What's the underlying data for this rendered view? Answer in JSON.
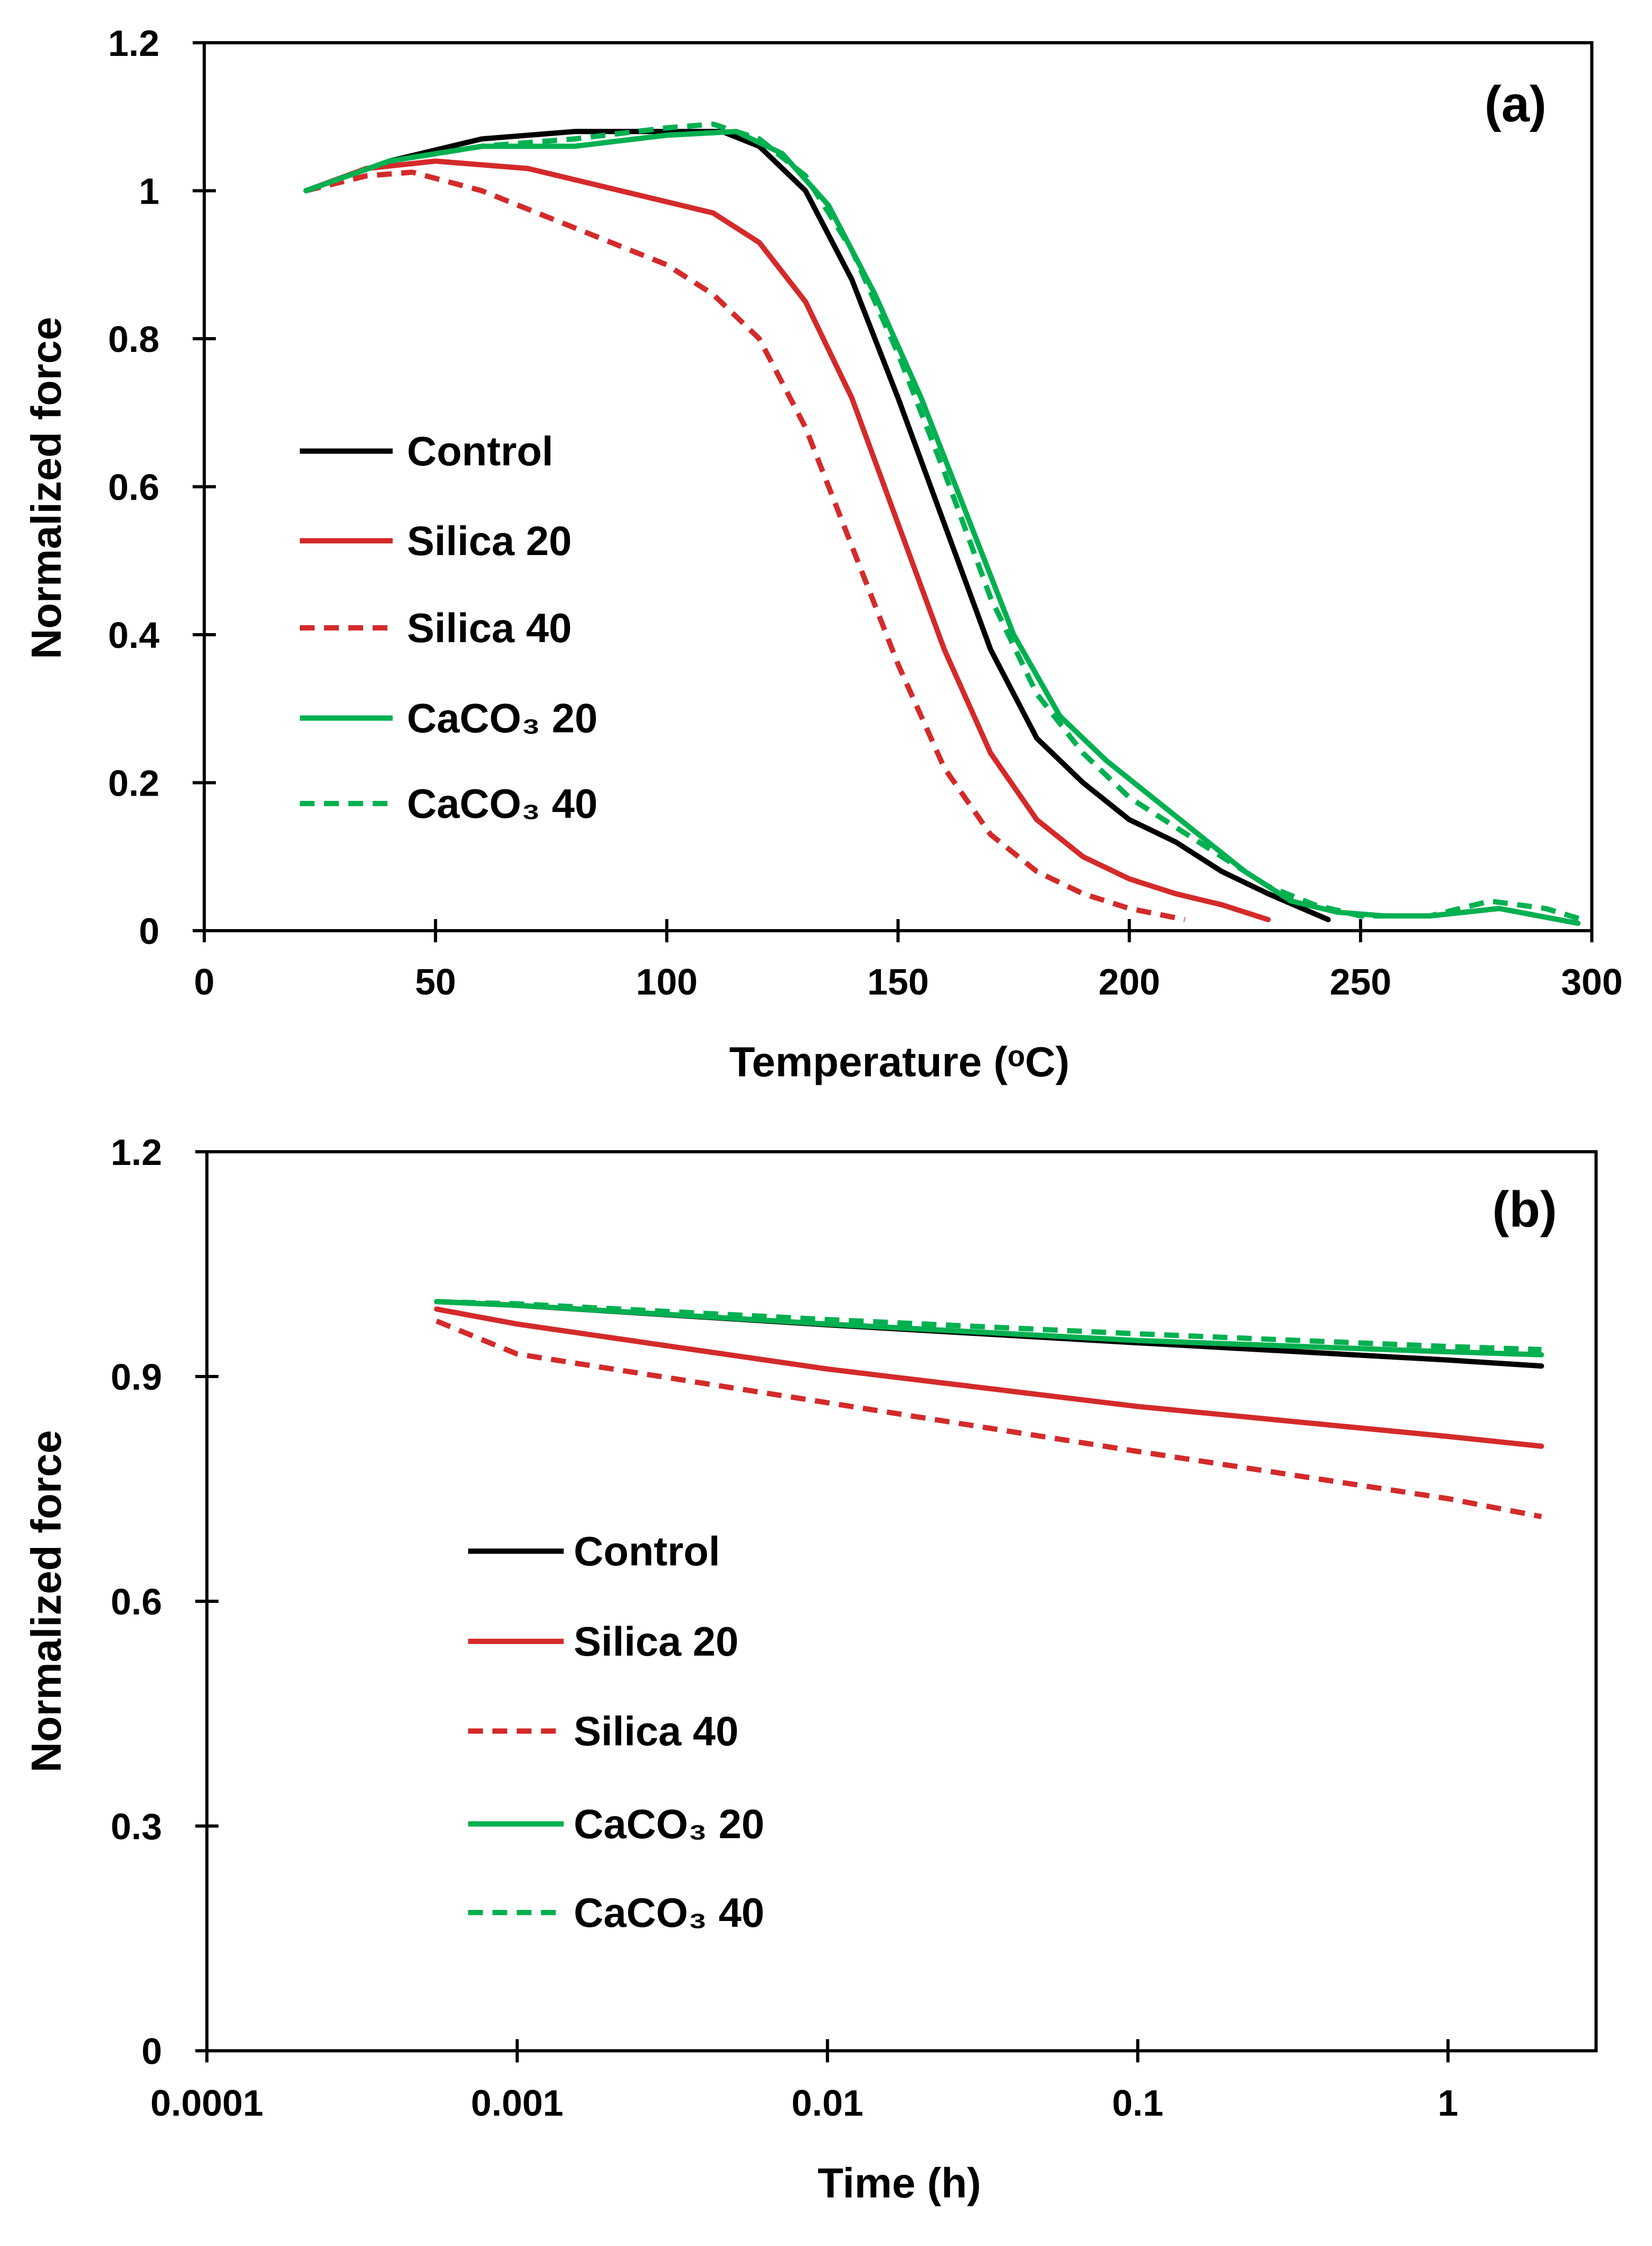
{
  "colors": {
    "control": "#000000",
    "silica": "#d42a2a",
    "caco3": "#00b050"
  },
  "chart_data": [
    {
      "type": "line",
      "panel_label": "(a)",
      "xlabel": "Temperature (ᵒC)",
      "ylabel": "Normalized force",
      "xlim": [
        0,
        300
      ],
      "ylim": [
        0,
        1.2
      ],
      "xscale": "linear",
      "xticks": [
        0,
        50,
        100,
        150,
        200,
        250,
        300
      ],
      "xtick_labels": [
        "0",
        "50",
        "100",
        "150",
        "200",
        "250",
        "300"
      ],
      "yticks": [
        0,
        0.2,
        0.4,
        0.6,
        0.8,
        1,
        1.2
      ],
      "ytick_labels": [
        "0",
        "0.2",
        "0.4",
        "0.6",
        "0.8",
        "1",
        "1.2"
      ],
      "legend_position": "center-left",
      "grid": false,
      "series": [
        {
          "name": "Control",
          "color": "control",
          "dashed": false,
          "x": [
            22,
            40,
            60,
            80,
            100,
            112,
            120,
            130,
            140,
            150,
            160,
            170,
            180,
            190,
            200,
            210,
            220,
            230,
            243
          ],
          "y": [
            1.0,
            1.04,
            1.07,
            1.08,
            1.08,
            1.08,
            1.06,
            1.0,
            0.88,
            0.72,
            0.55,
            0.38,
            0.26,
            0.2,
            0.15,
            0.12,
            0.08,
            0.05,
            0.015
          ]
        },
        {
          "name": "Silica 20",
          "color": "silica",
          "dashed": false,
          "x": [
            22,
            35,
            50,
            70,
            90,
            110,
            120,
            130,
            140,
            150,
            160,
            170,
            180,
            190,
            200,
            210,
            220,
            230
          ],
          "y": [
            1.0,
            1.03,
            1.04,
            1.03,
            1.0,
            0.97,
            0.93,
            0.85,
            0.72,
            0.55,
            0.38,
            0.24,
            0.15,
            0.1,
            0.07,
            0.05,
            0.035,
            0.015
          ]
        },
        {
          "name": "Silica 40",
          "color": "silica",
          "dashed": true,
          "x": [
            22,
            35,
            45,
            60,
            80,
            100,
            110,
            120,
            130,
            140,
            150,
            160,
            170,
            180,
            190,
            200,
            212
          ],
          "y": [
            1.0,
            1.02,
            1.025,
            1.0,
            0.95,
            0.9,
            0.86,
            0.8,
            0.68,
            0.52,
            0.36,
            0.22,
            0.13,
            0.08,
            0.05,
            0.03,
            0.015
          ]
        },
        {
          "name": "CaCO₃ 20",
          "color": "caco3",
          "dashed": false,
          "x": [
            22,
            40,
            60,
            80,
            100,
            115,
            125,
            135,
            145,
            155,
            165,
            175,
            185,
            195,
            205,
            215,
            225,
            235,
            245,
            255,
            265,
            280,
            297
          ],
          "y": [
            1.0,
            1.04,
            1.06,
            1.06,
            1.075,
            1.08,
            1.05,
            0.98,
            0.86,
            0.72,
            0.56,
            0.4,
            0.29,
            0.23,
            0.18,
            0.13,
            0.08,
            0.04,
            0.025,
            0.02,
            0.02,
            0.03,
            0.01
          ]
        },
        {
          "name": "CaCO₃ 40",
          "color": "caco3",
          "dashed": true,
          "x": [
            22,
            40,
            60,
            80,
            100,
            110,
            120,
            130,
            140,
            150,
            160,
            170,
            180,
            190,
            200,
            210,
            220,
            230,
            240,
            250,
            265,
            278,
            290,
            298
          ],
          "y": [
            1.0,
            1.04,
            1.06,
            1.07,
            1.085,
            1.09,
            1.07,
            1.02,
            0.92,
            0.78,
            0.62,
            0.45,
            0.32,
            0.24,
            0.18,
            0.14,
            0.1,
            0.06,
            0.035,
            0.02,
            0.02,
            0.04,
            0.03,
            0.015
          ]
        }
      ]
    },
    {
      "type": "line",
      "panel_label": "(b)",
      "xlabel": "Time (h)",
      "ylabel": "Normalized force",
      "xlim": [
        0.0001,
        3
      ],
      "ylim": [
        0,
        1.2
      ],
      "xscale": "log",
      "xticks": [
        0.0001,
        0.001,
        0.01,
        0.1,
        1
      ],
      "xtick_labels": [
        "0.0001",
        "0.001",
        "0.01",
        "0.1",
        "1"
      ],
      "yticks": [
        0,
        0.3,
        0.6,
        0.9,
        1.2
      ],
      "ytick_labels": [
        "0",
        "0.3",
        "0.6",
        "0.9",
        "1.2"
      ],
      "legend_position": "center-left",
      "grid": false,
      "series": [
        {
          "name": "Control",
          "color": "control",
          "dashed": false,
          "x": [
            0.00055,
            0.001,
            0.01,
            0.1,
            1,
            2
          ],
          "y": [
            1.0,
            0.995,
            0.969,
            0.945,
            0.922,
            0.914
          ]
        },
        {
          "name": "Silica 20",
          "color": "silica",
          "dashed": false,
          "x": [
            0.00055,
            0.001,
            0.01,
            0.1,
            1,
            2
          ],
          "y": [
            0.99,
            0.97,
            0.91,
            0.86,
            0.82,
            0.807
          ]
        },
        {
          "name": "Silica 40",
          "color": "silica",
          "dashed": true,
          "x": [
            0.00055,
            0.001,
            0.01,
            0.1,
            1,
            2
          ],
          "y": [
            0.974,
            0.93,
            0.865,
            0.8,
            0.737,
            0.713
          ]
        },
        {
          "name": "CaCO₃ 20",
          "color": "caco3",
          "dashed": false,
          "x": [
            0.00055,
            0.001,
            0.01,
            0.1,
            1,
            2
          ],
          "y": [
            1.0,
            0.995,
            0.97,
            0.948,
            0.933,
            0.929
          ]
        },
        {
          "name": "CaCO₃ 40",
          "color": "caco3",
          "dashed": true,
          "x": [
            0.00055,
            0.001,
            0.01,
            0.1,
            1,
            2
          ],
          "y": [
            1.0,
            0.997,
            0.976,
            0.957,
            0.94,
            0.936
          ]
        }
      ]
    }
  ]
}
